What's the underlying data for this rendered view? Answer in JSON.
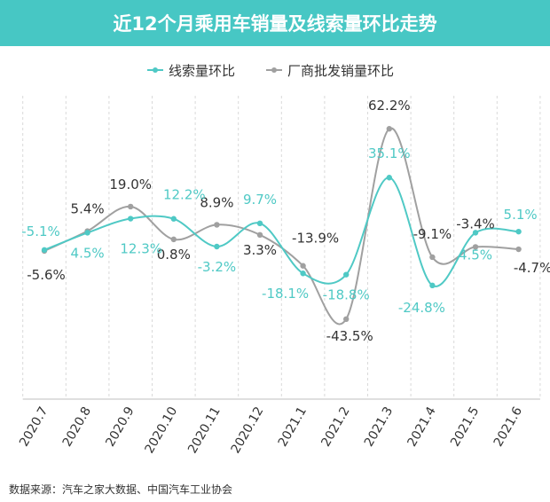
{
  "chart_data": {
    "type": "line",
    "title": "近12个月乘用车销量及线索量环比走势",
    "categories": [
      "2020.7",
      "2020.8",
      "2020.9",
      "2020.10",
      "2020.11",
      "2020.12",
      "2021.1",
      "2021.2",
      "2021.3",
      "2021.4",
      "2021.5",
      "2021.6"
    ],
    "series": [
      {
        "name": "线索量环比",
        "values": [
          -5.1,
          4.5,
          12.3,
          12.2,
          -3.2,
          9.7,
          -18.1,
          -18.8,
          35.1,
          -24.8,
          4.5,
          5.1
        ],
        "labels": [
          "-5.1%",
          "4.5%",
          "12.3%",
          "12.2%",
          "-3.2%",
          "9.7%",
          "-18.1%",
          "-18.8%",
          "35.1%",
          "-24.8%",
          "4.5%",
          "5.1%"
        ]
      },
      {
        "name": "厂商批发销量环比",
        "values": [
          -5.6,
          5.4,
          19.0,
          0.8,
          8.9,
          3.3,
          -13.9,
          -43.5,
          62.2,
          -9.1,
          -3.4,
          -4.7
        ],
        "labels": [
          "-5.6%",
          "5.4%",
          "19.0%",
          "0.8%",
          "8.9%",
          "3.3%",
          "-13.9%",
          "-43.5%",
          "62.2%",
          "-9.1%",
          "-3.4%",
          "-4.7%"
        ]
      }
    ],
    "colors": {
      "线索量环比": "#4fc9c5",
      "厂商批发销量环比": "#a0a0a0",
      "banner": "#47c7c4"
    },
    "legend": "top-center",
    "grid": "vertical-dashed"
  },
  "footer": {
    "source": "数据来源：汽车之家大数据、中国汽车工业协会"
  }
}
